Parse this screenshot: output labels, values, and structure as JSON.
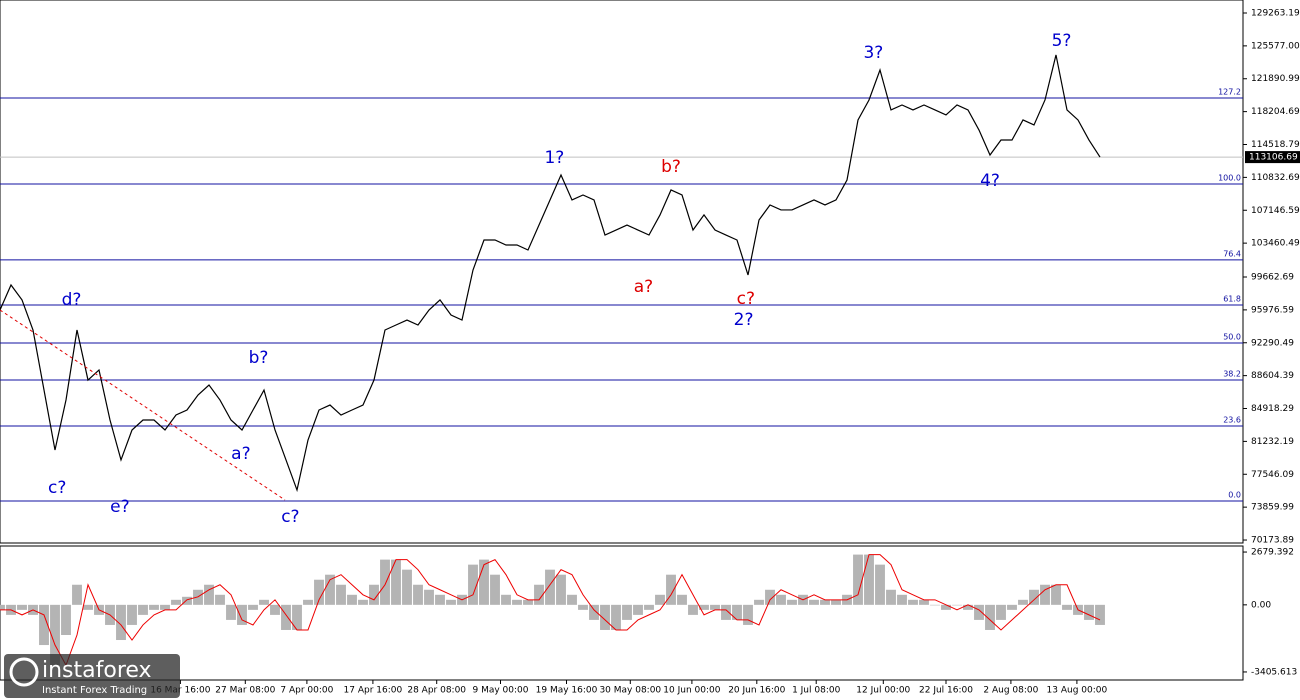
{
  "chart_data": [
    {
      "type": "line",
      "color": "#000000",
      "x": [
        0,
        1,
        2,
        3,
        4,
        5,
        6,
        7,
        8,
        9,
        10,
        11,
        12,
        13,
        14,
        15,
        16,
        17,
        18,
        19,
        20,
        21,
        22,
        23,
        24,
        25,
        26,
        27,
        28,
        29,
        30,
        31,
        32,
        33,
        34,
        35,
        36,
        37,
        38,
        39,
        40,
        41,
        42,
        43,
        44,
        45,
        46,
        47,
        48,
        49,
        50,
        51,
        52,
        53,
        54,
        55,
        56,
        57,
        58,
        59,
        60,
        61,
        62,
        63,
        64,
        65,
        66,
        67,
        68,
        69,
        70,
        71,
        72,
        73,
        74,
        75,
        76,
        77,
        78,
        79,
        80,
        81,
        82,
        83,
        84,
        85,
        86,
        87,
        88,
        89,
        90,
        91,
        92,
        93,
        94,
        95,
        96,
        97,
        98,
        99,
        100
      ],
      "values": [
        95960,
        98770,
        97090,
        93720,
        86990,
        80270,
        85870,
        93720,
        88110,
        89240,
        83630,
        79150,
        82510,
        83630,
        83630,
        82510,
        84190,
        84750,
        86430,
        87550,
        85870,
        83630,
        82510,
        84750,
        86990,
        82510,
        79150,
        75780,
        81390,
        84750,
        85310,
        84190,
        84750,
        85310,
        88110,
        93720,
        94280,
        94840,
        94280,
        95960,
        97090,
        95400,
        94840,
        100450,
        103810,
        103810,
        103250,
        103250,
        102690,
        105490,
        108300,
        111100,
        108300,
        108860,
        108300,
        104370,
        104930,
        105490,
        104930,
        104370,
        106620,
        109420,
        108860,
        104930,
        106620,
        104930,
        104370,
        103810,
        99890,
        106050,
        107740,
        107180,
        107180,
        107740,
        108300,
        107740,
        108300,
        110540,
        117270,
        119510,
        122870,
        118390,
        118950,
        118390,
        118950,
        118390,
        117830,
        118950,
        118390,
        116140,
        113340,
        115020,
        115020,
        117270,
        116710,
        119510,
        124560,
        118390,
        117270,
        115020,
        113110
      ],
      "xlim": [
        0,
        113
      ],
      "ylim": [
        69840,
        130720
      ],
      "yticks": [
        129263.19,
        {
          "value": 125577,
          "label": "125577.00"
        },
        121890.99,
        118204.69,
        114518.79,
        110832.69,
        107146.59,
        103460.49,
        99662.69,
        95976.59,
        92290.49,
        88604.39,
        84918.29,
        81232.19,
        77546.09,
        73859.99,
        70173.89
      ],
      "xticks": [
        {
          "value": 16.4,
          "label": "16 Mar 16:00"
        },
        {
          "value": 22.3,
          "label": "27 Mar 08:00"
        },
        {
          "value": 27.9,
          "label": "7 Apr 00:00"
        },
        {
          "value": 33.9,
          "label": "17 Apr 16:00"
        },
        {
          "value": 39.7,
          "label": "28 Apr 08:00"
        },
        {
          "value": 45.5,
          "label": "9 May 00:00"
        },
        {
          "value": 51.5,
          "label": "19 May 16:00"
        },
        {
          "value": 57.3,
          "label": "30 May 08:00"
        },
        {
          "value": 62.9,
          "label": "10 Jun 00:00"
        },
        {
          "value": 68.8,
          "label": "20 Jun 16:00"
        },
        {
          "value": 74.2,
          "label": "1 Jul 08:00"
        },
        {
          "value": 80.3,
          "label": "12 Jul 00:00"
        },
        {
          "value": 86,
          "label": "22 Jul 16:00"
        },
        {
          "value": 91.9,
          "label": "2 Aug 08:00"
        },
        {
          "value": 97.9,
          "label": "13 Aug 00:00"
        }
      ],
      "last_price": 113106.69,
      "levels_color": "#1010a0",
      "levels": [
        {
          "label": "127.2",
          "value": 119732
        },
        {
          "label": "100.0",
          "value": 110090
        },
        {
          "label": "76.4",
          "value": 101583
        },
        {
          "label": "61.8",
          "value": 96523
        },
        {
          "label": "50.0",
          "value": 92262
        },
        {
          "label": "38.2",
          "value": 88114
        },
        {
          "label": "23.6",
          "value": 82955
        },
        {
          "label": "0.0",
          "value": 74546
        }
      ],
      "annotations": [
        {
          "text": "d?",
          "x": 6.5,
          "y": 97090,
          "color": "#0000cc"
        },
        {
          "text": "c?",
          "x": 5.2,
          "y": 76010,
          "color": "#0000cc"
        },
        {
          "text": "e?",
          "x": 10.9,
          "y": 73880,
          "color": "#0000cc"
        },
        {
          "text": "b?",
          "x": 23.5,
          "y": 90580,
          "color": "#0000cc"
        },
        {
          "text": "a?",
          "x": 21.9,
          "y": 79820,
          "color": "#0000cc"
        },
        {
          "text": "c?",
          "x": 26.4,
          "y": 72760,
          "color": "#0000cc"
        },
        {
          "text": "1?",
          "x": 50.4,
          "y": 113010,
          "color": "#0000cc"
        },
        {
          "text": "b?",
          "x": 61,
          "y": 112000,
          "color": "#dd0000"
        },
        {
          "text": "a?",
          "x": 58.5,
          "y": 98540,
          "color": "#dd0000"
        },
        {
          "text": "c?",
          "x": 67.8,
          "y": 97190,
          "color": "#dd0000"
        },
        {
          "text": "2?",
          "x": 67.6,
          "y": 94840,
          "color": "#0000cc"
        },
        {
          "text": "3?",
          "x": 79.4,
          "y": 124780,
          "color": "#0000cc"
        },
        {
          "text": "4?",
          "x": 90,
          "y": 110430,
          "color": "#0000cc"
        },
        {
          "text": "5?",
          "x": 96.5,
          "y": 126120,
          "color": "#0000cc"
        }
      ]
    },
    {
      "type": "oscillator",
      "color": "#b4b4b4",
      "signal_color": "#ee0000",
      "x": [
        0,
        1,
        2,
        3,
        4,
        5,
        6,
        7,
        8,
        9,
        10,
        11,
        12,
        13,
        14,
        15,
        16,
        17,
        18,
        19,
        20,
        21,
        22,
        23,
        24,
        25,
        26,
        27,
        28,
        29,
        30,
        31,
        32,
        33,
        34,
        35,
        36,
        37,
        38,
        39,
        40,
        41,
        42,
        43,
        44,
        45,
        46,
        47,
        48,
        49,
        50,
        51,
        52,
        53,
        54,
        55,
        56,
        57,
        58,
        59,
        60,
        61,
        62,
        63,
        64,
        65,
        66,
        67,
        68,
        69,
        70,
        71,
        72,
        73,
        74,
        75,
        76,
        77,
        78,
        79,
        80,
        81,
        82,
        83,
        84,
        85,
        86,
        87,
        88,
        89,
        90,
        91,
        92,
        93,
        94,
        95,
        96,
        97,
        98,
        99,
        100
      ],
      "values": [
        -255,
        -510,
        -255,
        -510,
        -2040,
        -3060,
        -1530,
        1020,
        -255,
        -510,
        -1020,
        -1785,
        -1020,
        -510,
        -255,
        -255,
        255,
        408,
        765,
        1020,
        510,
        -765,
        -1020,
        -255,
        255,
        -510,
        -1275,
        -1275,
        255,
        1275,
        1530,
        1020,
        510,
        255,
        1020,
        2295,
        2295,
        1785,
        1020,
        765,
        510,
        255,
        510,
        2040,
        2295,
        1530,
        510,
        255,
        255,
        1020,
        1785,
        1530,
        510,
        -255,
        -765,
        -1275,
        -1275,
        -765,
        -510,
        -255,
        510,
        1530,
        510,
        -510,
        -255,
        -255,
        -765,
        -765,
        -1020,
        255,
        765,
        510,
        255,
        510,
        255,
        255,
        255,
        510,
        2550,
        2550,
        2040,
        765,
        510,
        255,
        255,
        0,
        -255,
        0,
        -255,
        -765,
        -1275,
        -765,
        -255,
        255,
        765,
        1020,
        1020,
        -255,
        -510,
        -765,
        -1020
      ],
      "signal": [
        -255,
        -255,
        -510,
        -255,
        -510,
        -2040,
        -3060,
        -1530,
        1020,
        -255,
        -510,
        -1020,
        -1785,
        -1020,
        -510,
        -255,
        -255,
        255,
        408,
        765,
        1020,
        510,
        -765,
        -1020,
        -255,
        255,
        -510,
        -1275,
        -1275,
        255,
        1275,
        1530,
        1020,
        510,
        255,
        1020,
        2295,
        2295,
        1785,
        1020,
        765,
        510,
        255,
        510,
        2040,
        2295,
        1530,
        510,
        255,
        255,
        1020,
        1785,
        1530,
        510,
        -255,
        -765,
        -1275,
        -1275,
        -765,
        -510,
        -255,
        510,
        1530,
        510,
        -510,
        -255,
        -255,
        -765,
        -765,
        -1020,
        255,
        765,
        510,
        255,
        510,
        255,
        255,
        255,
        510,
        2550,
        2550,
        2040,
        765,
        510,
        255,
        255,
        0,
        -255,
        0,
        -255,
        -765,
        -1275,
        -765,
        -255,
        255,
        765,
        1020,
        1020,
        -255,
        -510,
        -765
      ],
      "xlim": [
        0,
        113
      ],
      "ylim": [
        -3814,
        2986
      ],
      "yticks": [
        2679.392,
        {
          "value": 0,
          "label": "0.00"
        },
        -3405.613
      ]
    }
  ],
  "brand": {
    "name": "instaforex",
    "tagline": "Instant Forex Trading"
  }
}
